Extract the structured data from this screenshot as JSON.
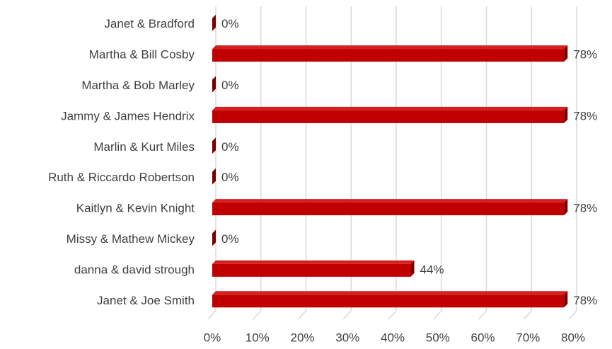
{
  "chart_data": {
    "type": "bar",
    "orientation": "horizontal",
    "categories": [
      "Janet &  Bradford",
      "Martha & Bill Cosby",
      "Martha & Bob Marley",
      "Jammy & James Hendrix",
      "Marlin & Kurt Miles",
      "Ruth & Riccardo Robertson",
      "Kaitlyn & Kevin Knight",
      "Missy & Mathew Mickey",
      "danna & david strough",
      "Janet & Joe Smith"
    ],
    "values": [
      0,
      78,
      0,
      78,
      0,
      0,
      78,
      0,
      44,
      78
    ],
    "value_labels": [
      "0%",
      "78%",
      "0%",
      "78%",
      "0%",
      "0%",
      "78%",
      "0%",
      "44%",
      "78%"
    ],
    "color": "#c00000",
    "xlim": [
      0,
      80
    ],
    "xticks": [
      {
        "value": 0,
        "label": "0%"
      },
      {
        "value": 10,
        "label": "10%"
      },
      {
        "value": 20,
        "label": "20%"
      },
      {
        "value": 30,
        "label": "30%"
      },
      {
        "value": 40,
        "label": "40%"
      },
      {
        "value": 50,
        "label": "50%"
      },
      {
        "value": 60,
        "label": "60%"
      },
      {
        "value": 70,
        "label": "70%"
      },
      {
        "value": 80,
        "label": "80%"
      }
    ],
    "grid": true
  }
}
